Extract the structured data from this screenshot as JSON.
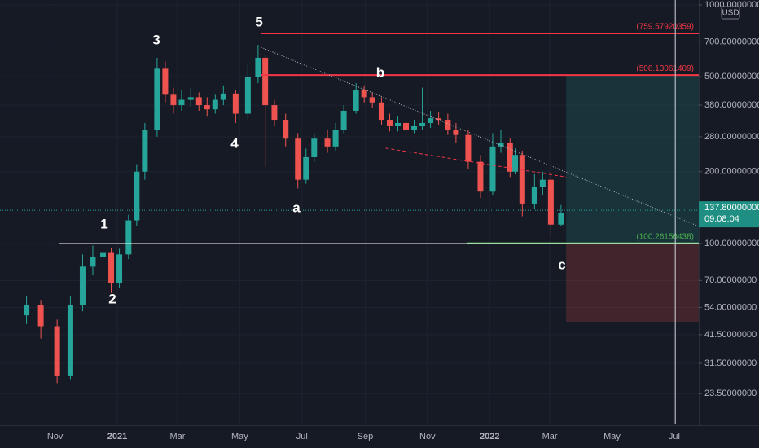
{
  "chart_data": {
    "type": "candlestick",
    "currency": "USD",
    "log_scale": true,
    "grid": true,
    "up_color": "#26a69a",
    "down_color": "#ef5350",
    "xlim": [
      "2020-09-08",
      "2022-07-25"
    ],
    "ylim": [
      17.6,
      1048
    ],
    "xticks": [
      {
        "value": "2020-11-01",
        "label": "Nov"
      },
      {
        "value": "2021-01-01",
        "label": "2021"
      },
      {
        "value": "2021-03-01",
        "label": "Mar"
      },
      {
        "value": "2021-05-01",
        "label": "May"
      },
      {
        "value": "2021-07-01",
        "label": "Jul"
      },
      {
        "value": "2021-09-01",
        "label": "Sep"
      },
      {
        "value": "2021-11-01",
        "label": "Nov"
      },
      {
        "value": "2022-01-01",
        "label": "2022"
      },
      {
        "value": "2022-03-01",
        "label": "Mar"
      },
      {
        "value": "2022-05-01",
        "label": "May"
      },
      {
        "value": "2022-07-01",
        "label": "Jul"
      }
    ],
    "yticks": [
      {
        "value": 1000,
        "label": "1000.00000000"
      },
      {
        "value": 700,
        "label": "700.00000000"
      },
      {
        "value": 500,
        "label": "500.00000000"
      },
      {
        "value": 380,
        "label": "380.00000000"
      },
      {
        "value": 280,
        "label": "280.00000000"
      },
      {
        "value": 200,
        "label": "200.00000000"
      },
      {
        "value": 100,
        "label": "100.00000000"
      },
      {
        "value": 70,
        "label": "70.00000000"
      },
      {
        "value": 54,
        "label": "54.00000000"
      },
      {
        "value": 41.5,
        "label": "41.50000000"
      },
      {
        "value": 31.5,
        "label": "31.50000000"
      },
      {
        "value": 23.5,
        "label": "23.50000000"
      }
    ],
    "x": [
      "2020-10-04",
      "2020-10-18",
      "2020-11-03",
      "2020-11-16",
      "2020-11-28",
      "2020-12-08",
      "2020-12-18",
      "2020-12-26",
      "2021-01-03",
      "2021-01-12",
      "2021-01-20",
      "2021-01-28",
      "2021-02-09",
      "2021-02-17",
      "2021-02-25",
      "2021-03-05",
      "2021-03-14",
      "2021-03-22",
      "2021-03-30",
      "2021-04-07",
      "2021-04-15",
      "2021-04-27",
      "2021-05-09",
      "2021-05-19",
      "2021-05-26",
      "2021-06-04",
      "2021-06-15",
      "2021-06-27",
      "2021-07-05",
      "2021-07-13",
      "2021-07-26",
      "2021-08-03",
      "2021-08-11",
      "2021-08-23",
      "2021-08-31",
      "2021-09-08",
      "2021-09-17",
      "2021-09-25",
      "2021-10-03",
      "2021-10-11",
      "2021-10-19",
      "2021-10-27",
      "2021-11-04",
      "2021-11-12",
      "2021-11-21",
      "2021-11-29",
      "2021-12-11",
      "2021-12-23",
      "2022-01-04",
      "2022-01-12",
      "2022-01-21",
      "2022-01-26",
      "2022-02-02",
      "2022-02-14",
      "2022-02-22",
      "2022-03-02",
      "2022-03-12"
    ],
    "open": [
      50,
      55,
      45,
      28,
      55,
      80,
      88,
      92,
      68,
      90,
      125,
      200,
      300,
      540,
      420,
      380,
      400,
      410,
      380,
      365,
      400,
      425,
      350,
      500,
      600,
      380,
      330,
      275,
      185,
      230,
      275,
      255,
      300,
      360,
      440,
      410,
      390,
      330,
      310,
      320,
      300,
      310,
      320,
      335,
      330,
      300,
      285,
      220,
      165,
      255,
      265,
      200,
      235,
      147,
      172,
      185,
      120
    ],
    "high": [
      60,
      58,
      48,
      60,
      90,
      98,
      102,
      96,
      95,
      132,
      215,
      320,
      600,
      580,
      450,
      440,
      450,
      430,
      410,
      420,
      460,
      440,
      560,
      680,
      620,
      400,
      350,
      290,
      250,
      290,
      300,
      320,
      380,
      470,
      460,
      430,
      410,
      350,
      340,
      335,
      330,
      450,
      360,
      355,
      350,
      320,
      300,
      235,
      290,
      300,
      275,
      250,
      245,
      195,
      200,
      195,
      145
    ],
    "low": [
      46,
      40,
      26,
      27,
      52,
      74,
      82,
      62,
      65,
      86,
      118,
      185,
      280,
      390,
      350,
      360,
      375,
      360,
      340,
      350,
      380,
      320,
      330,
      470,
      210,
      310,
      255,
      170,
      178,
      220,
      240,
      245,
      290,
      350,
      390,
      370,
      315,
      295,
      295,
      285,
      290,
      300,
      305,
      315,
      285,
      265,
      205,
      155,
      160,
      240,
      190,
      195,
      130,
      140,
      160,
      110,
      118
    ],
    "close": [
      55,
      45,
      28,
      55,
      80,
      88,
      92,
      68,
      90,
      125,
      200,
      300,
      540,
      420,
      380,
      400,
      410,
      380,
      365,
      400,
      425,
      350,
      500,
      600,
      380,
      330,
      275,
      185,
      230,
      275,
      255,
      300,
      360,
      440,
      410,
      390,
      330,
      310,
      320,
      300,
      310,
      320,
      335,
      330,
      300,
      285,
      220,
      165,
      255,
      265,
      200,
      235,
      147,
      172,
      185,
      120,
      134
    ],
    "levels": [
      {
        "value": 759.57920359,
        "label": "(759.57920359)",
        "color": "#f23645",
        "from": "2021-05-22"
      },
      {
        "value": 508.13061409,
        "label": "(508.13061409)",
        "color": "#f23645",
        "from": "2021-05-22"
      },
      {
        "value": 100.26156438,
        "label": "(100.26156438)",
        "color": "#4caf50",
        "from": "2021-12-10"
      }
    ],
    "support": {
      "value": 100,
      "from": "2020-11-05",
      "color": "#ffffff"
    },
    "trendline": {
      "x": [
        "2021-05-22",
        "2022-07-25"
      ],
      "values": [
        664,
        118
      ],
      "color": "#b2b5be"
    },
    "channel": {
      "x": [
        "2021-09-21",
        "2022-03-17"
      ],
      "values": [
        251,
        190
      ],
      "color": "#f23645"
    },
    "position": {
      "x": [
        "2022-03-17",
        "2022-07-25"
      ],
      "target": 508.13061409,
      "entry": 100.26156438,
      "stop": 47
    },
    "current_price": {
      "value": 137.8,
      "label": "137.80000000",
      "countdown": "09:08:04"
    },
    "crosshair_x": "2022-07-02",
    "waves": [
      "1",
      "2",
      "3",
      "4",
      "5",
      "a",
      "b",
      "c"
    ]
  }
}
